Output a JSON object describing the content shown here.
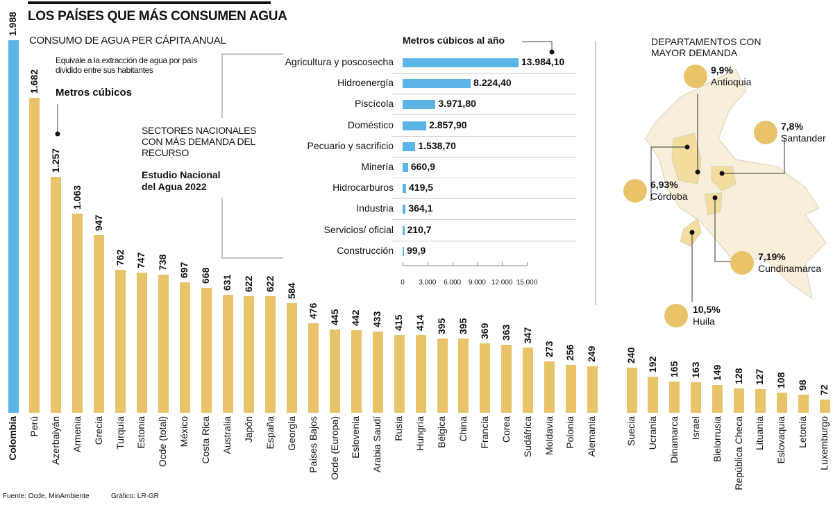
{
  "title": "LOS PAÍSES QUE MÁS CONSUMEN AGUA",
  "subtitle": "CONSUMO DE AGUA PER CÁPITA ANUAL",
  "note": "Equivale a la extracción de agua por país dividido entre sus habitantes",
  "units": "Metros cúbicos",
  "source": "Fuente: Ocde, MinAmbiente",
  "credit": "Gráfico: LR-GR",
  "colors": {
    "highlight": "#5bb3e6",
    "bars": "#e8c36a",
    "sector_bars": "#5bb3e6"
  },
  "chart_data": [
    {
      "type": "bar",
      "title": "CONSUMO DE AGUA PER CÁPITA ANUAL",
      "ylabel": "Metros cúbicos",
      "categories": [
        "Colombia",
        "Perú",
        "Azerbaiyán",
        "Armenia",
        "Grecia",
        "Turquía",
        "Estonia",
        "Ocde (total)",
        "México",
        "Costa Rica",
        "Australia",
        "Japón",
        "España",
        "Georgia",
        "Países Bajos",
        "Ocde (Europa)",
        "Eslovenia",
        "Arabia Saudí",
        "Rusia",
        "Hungría",
        "Bélgica",
        "China",
        "Francia",
        "Corea",
        "Sudáfrica",
        "Moldavia",
        "Polonia",
        "Alemania",
        "Suecia",
        "Ucrania",
        "Dinamarca",
        "Israel",
        "Bielorrusia",
        "República Checa",
        "Lituania",
        "Eslovaquia",
        "Letonia",
        "Luxemburgo"
      ],
      "values": [
        1988,
        1682,
        1257,
        1063,
        947,
        762,
        747,
        738,
        697,
        668,
        631,
        622,
        622,
        584,
        476,
        445,
        442,
        433,
        415,
        414,
        395,
        395,
        369,
        363,
        347,
        273,
        256,
        249,
        240,
        192,
        165,
        163,
        149,
        128,
        127,
        108,
        98,
        72
      ],
      "labels": [
        "1.988",
        "1.682",
        "1.257",
        "1.063",
        "947",
        "762",
        "747",
        "738",
        "697",
        "668",
        "631",
        "622",
        "622",
        "584",
        "476",
        "445",
        "442",
        "433",
        "415",
        "414",
        "395",
        "395",
        "369",
        "363",
        "347",
        "273",
        "256",
        "249",
        "240",
        "192",
        "165",
        "163",
        "149",
        "128",
        "127",
        "108",
        "98",
        "72"
      ],
      "highlight": "Colombia"
    },
    {
      "type": "bar",
      "orientation": "horizontal",
      "title": "SECTORES NACIONALES CON MÁS DEMANDA DEL RECURSO",
      "subtitle": "Estudio Nacional del Agua 2022",
      "units": "Metros cúbicos al año",
      "categories": [
        "Agricultura y poscosecha",
        "Hidroenergía",
        "Piscícola",
        "Doméstico",
        "Pecuario y sacrificio",
        "Minería",
        "Hidrocarburos",
        "Industria",
        "Servicios/ oficial",
        "Construcción"
      ],
      "values": [
        13984.1,
        8224.4,
        3971.8,
        2857.9,
        1538.7,
        660.9,
        419.5,
        364.1,
        210.7,
        99.9
      ],
      "labels": [
        "13.984,10",
        "8.224,40",
        "3.971,80",
        "2.857,90",
        "1.538,70",
        "660,9",
        "419,5",
        "364,1",
        "210,7",
        "99,9"
      ],
      "xlim": [
        0,
        15000
      ],
      "ticks": [
        0,
        3000,
        6000,
        9000,
        12000,
        15000
      ],
      "tick_labels": [
        "0",
        "3.000",
        "6.000",
        "9.000",
        "12.000",
        "15.000"
      ]
    }
  ],
  "map": {
    "title": "DEPARTAMENTOS CON MAYOR DEMANDA",
    "departments": [
      {
        "name": "Antioquia",
        "pct": "9,9%"
      },
      {
        "name": "Santander",
        "pct": "7,8%"
      },
      {
        "name": "Córdoba",
        "pct": "6,93%"
      },
      {
        "name": "Cundinamarca",
        "pct": "7,19%"
      },
      {
        "name": "Huila",
        "pct": "10,5%"
      }
    ]
  }
}
